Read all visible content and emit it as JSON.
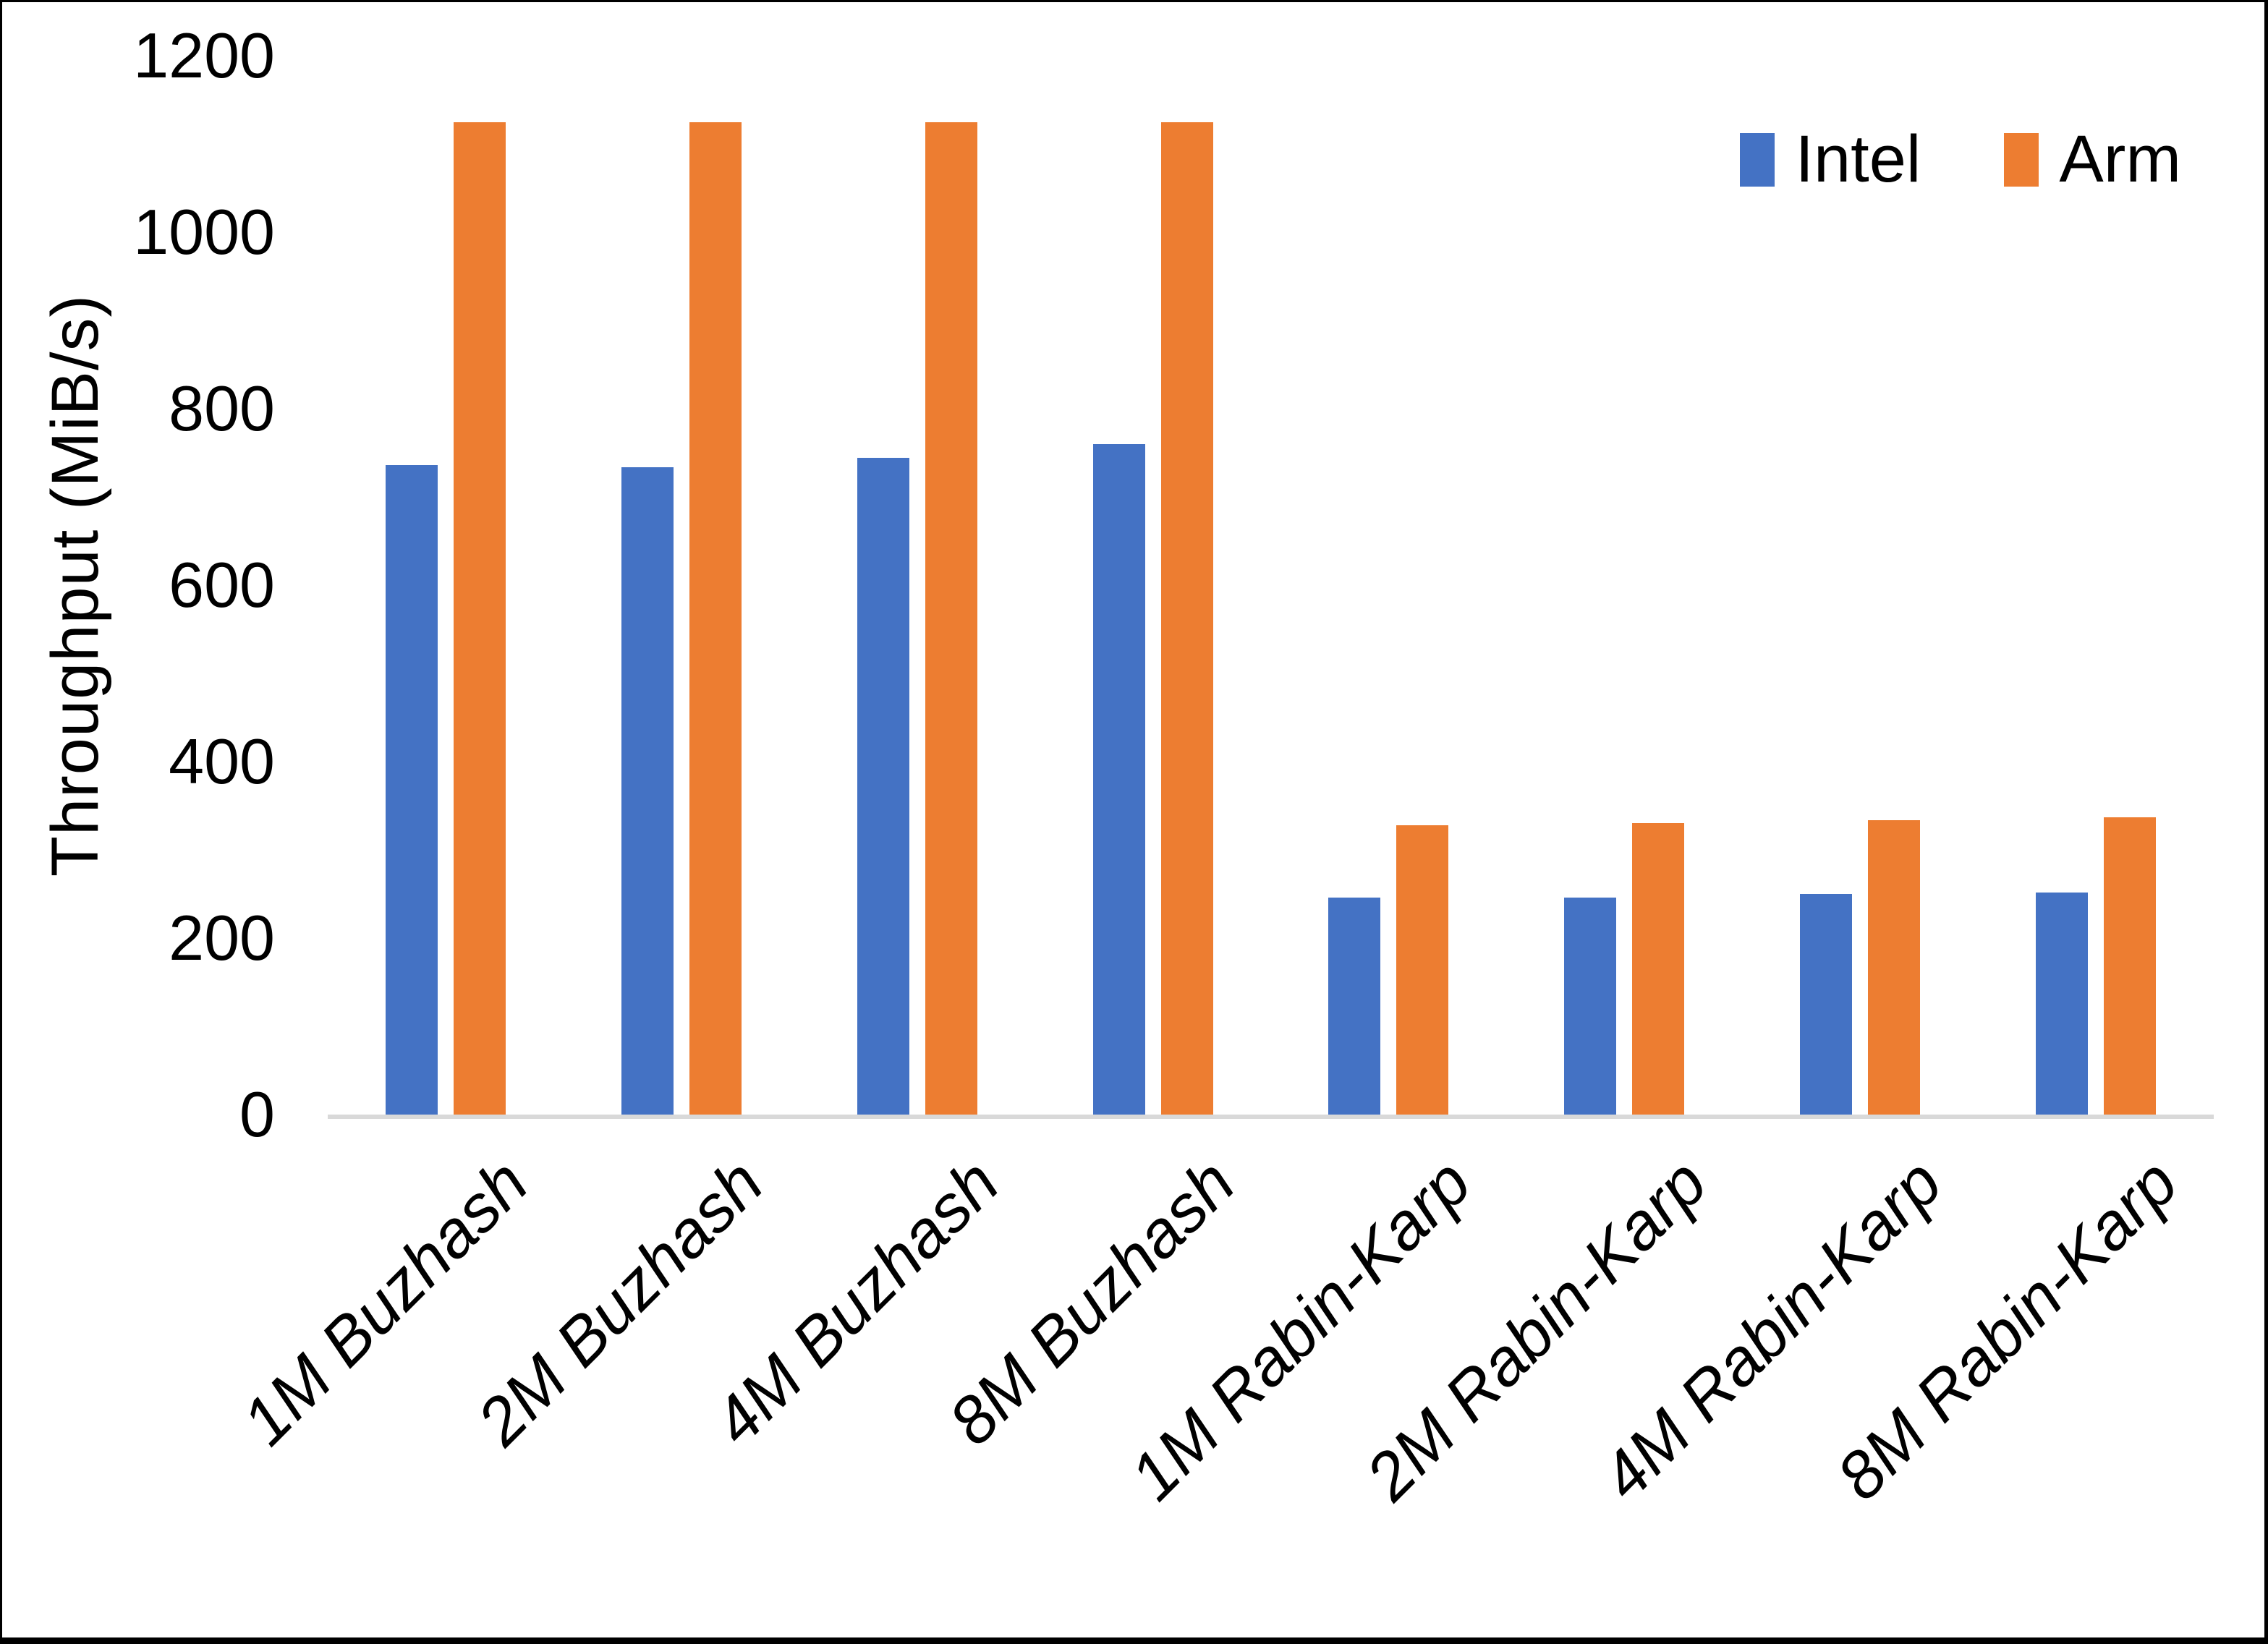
{
  "chart_data": {
    "type": "bar",
    "title": "",
    "ylabel": "Throughput (MiB/s)",
    "xlabel": "",
    "ylim": [
      0,
      1200
    ],
    "yticks": [
      0,
      200,
      400,
      600,
      800,
      1000,
      1200
    ],
    "grid": false,
    "axis_line_color": "#d9d9d9",
    "legend_position": "top-right",
    "categories": [
      "1M Buzhash",
      "2M Buzhash",
      "4M Buzhash",
      "8M Buzhash",
      "1M Rabin-Karp",
      "2M Rabin-Karp",
      "4M Rabin-Karp",
      "8M Rabin-Karp"
    ],
    "series": [
      {
        "name": "Intel",
        "color": "#4472C4",
        "values": [
          736,
          734,
          744,
          760,
          246,
          246,
          250,
          252
        ]
      },
      {
        "name": "Arm",
        "color": "#ED7D31",
        "values": [
          1125,
          1125,
          1125,
          1125,
          328,
          330,
          334,
          337
        ]
      }
    ]
  }
}
